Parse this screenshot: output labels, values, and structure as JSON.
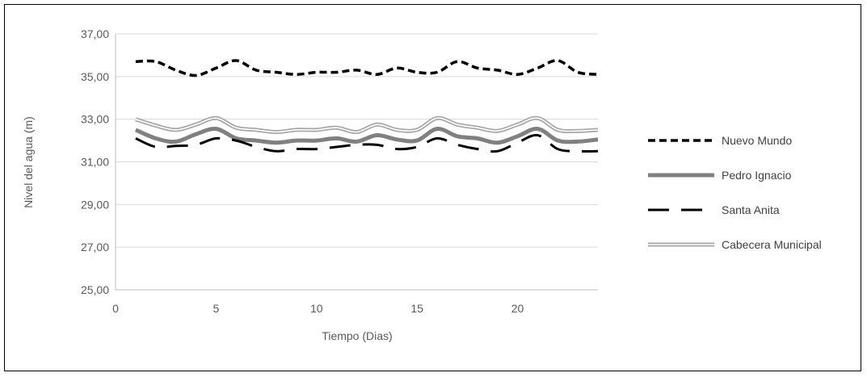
{
  "chart_data": {
    "type": "line",
    "xlabel": "Tiempo (Dias)",
    "ylabel": "Nivel del agua (m)",
    "xlim": [
      0,
      24
    ],
    "ylim": [
      25,
      37
    ],
    "x_ticks": [
      0,
      5,
      10,
      15,
      20
    ],
    "x_tick_labels": [
      "0",
      "5",
      "10",
      "15",
      "20"
    ],
    "y_ticks": [
      25,
      27,
      29,
      31,
      33,
      35,
      37
    ],
    "y_tick_labels": [
      "25,00",
      "27,00",
      "29,00",
      "31,00",
      "33,00",
      "35,00",
      "37,00"
    ],
    "grid": true,
    "legend_position": "right",
    "x": [
      1,
      2,
      3,
      4,
      5,
      6,
      7,
      8,
      9,
      10,
      11,
      12,
      13,
      14,
      15,
      16,
      17,
      18,
      19,
      20,
      21,
      22,
      23,
      24
    ],
    "series": [
      {
        "name": "Nuevo Mundo",
        "style": "short-dash",
        "color": "#000000",
        "values": [
          35.7,
          35.7,
          35.3,
          35.05,
          35.4,
          35.75,
          35.3,
          35.2,
          35.1,
          35.2,
          35.2,
          35.3,
          35.1,
          35.4,
          35.2,
          35.2,
          35.7,
          35.4,
          35.3,
          35.1,
          35.4,
          35.75,
          35.2,
          35.1
        ]
      },
      {
        "name": "Pedro Ignacio",
        "style": "thick-solid",
        "color": "#808080",
        "values": [
          32.5,
          32.1,
          31.95,
          32.3,
          32.55,
          32.1,
          32.0,
          31.9,
          32.0,
          32.0,
          32.1,
          31.95,
          32.25,
          32.05,
          32.0,
          32.55,
          32.2,
          32.1,
          31.9,
          32.2,
          32.55,
          32.0,
          31.95,
          32.05
        ]
      },
      {
        "name": "Santa Anita",
        "style": "long-dash",
        "color": "#000000",
        "values": [
          32.1,
          31.7,
          31.75,
          31.8,
          32.1,
          32.0,
          31.7,
          31.5,
          31.6,
          31.6,
          31.7,
          31.8,
          31.8,
          31.6,
          31.7,
          32.1,
          31.8,
          31.6,
          31.5,
          31.9,
          32.25,
          31.6,
          31.5,
          31.5
        ]
      },
      {
        "name": "Cabecera Municipal",
        "style": "double-line",
        "color": "#a6a6a6",
        "values": [
          33.0,
          32.7,
          32.5,
          32.75,
          33.05,
          32.6,
          32.5,
          32.4,
          32.5,
          32.5,
          32.6,
          32.4,
          32.75,
          32.5,
          32.5,
          33.05,
          32.75,
          32.6,
          32.45,
          32.75,
          33.05,
          32.5,
          32.45,
          32.5
        ]
      }
    ]
  }
}
